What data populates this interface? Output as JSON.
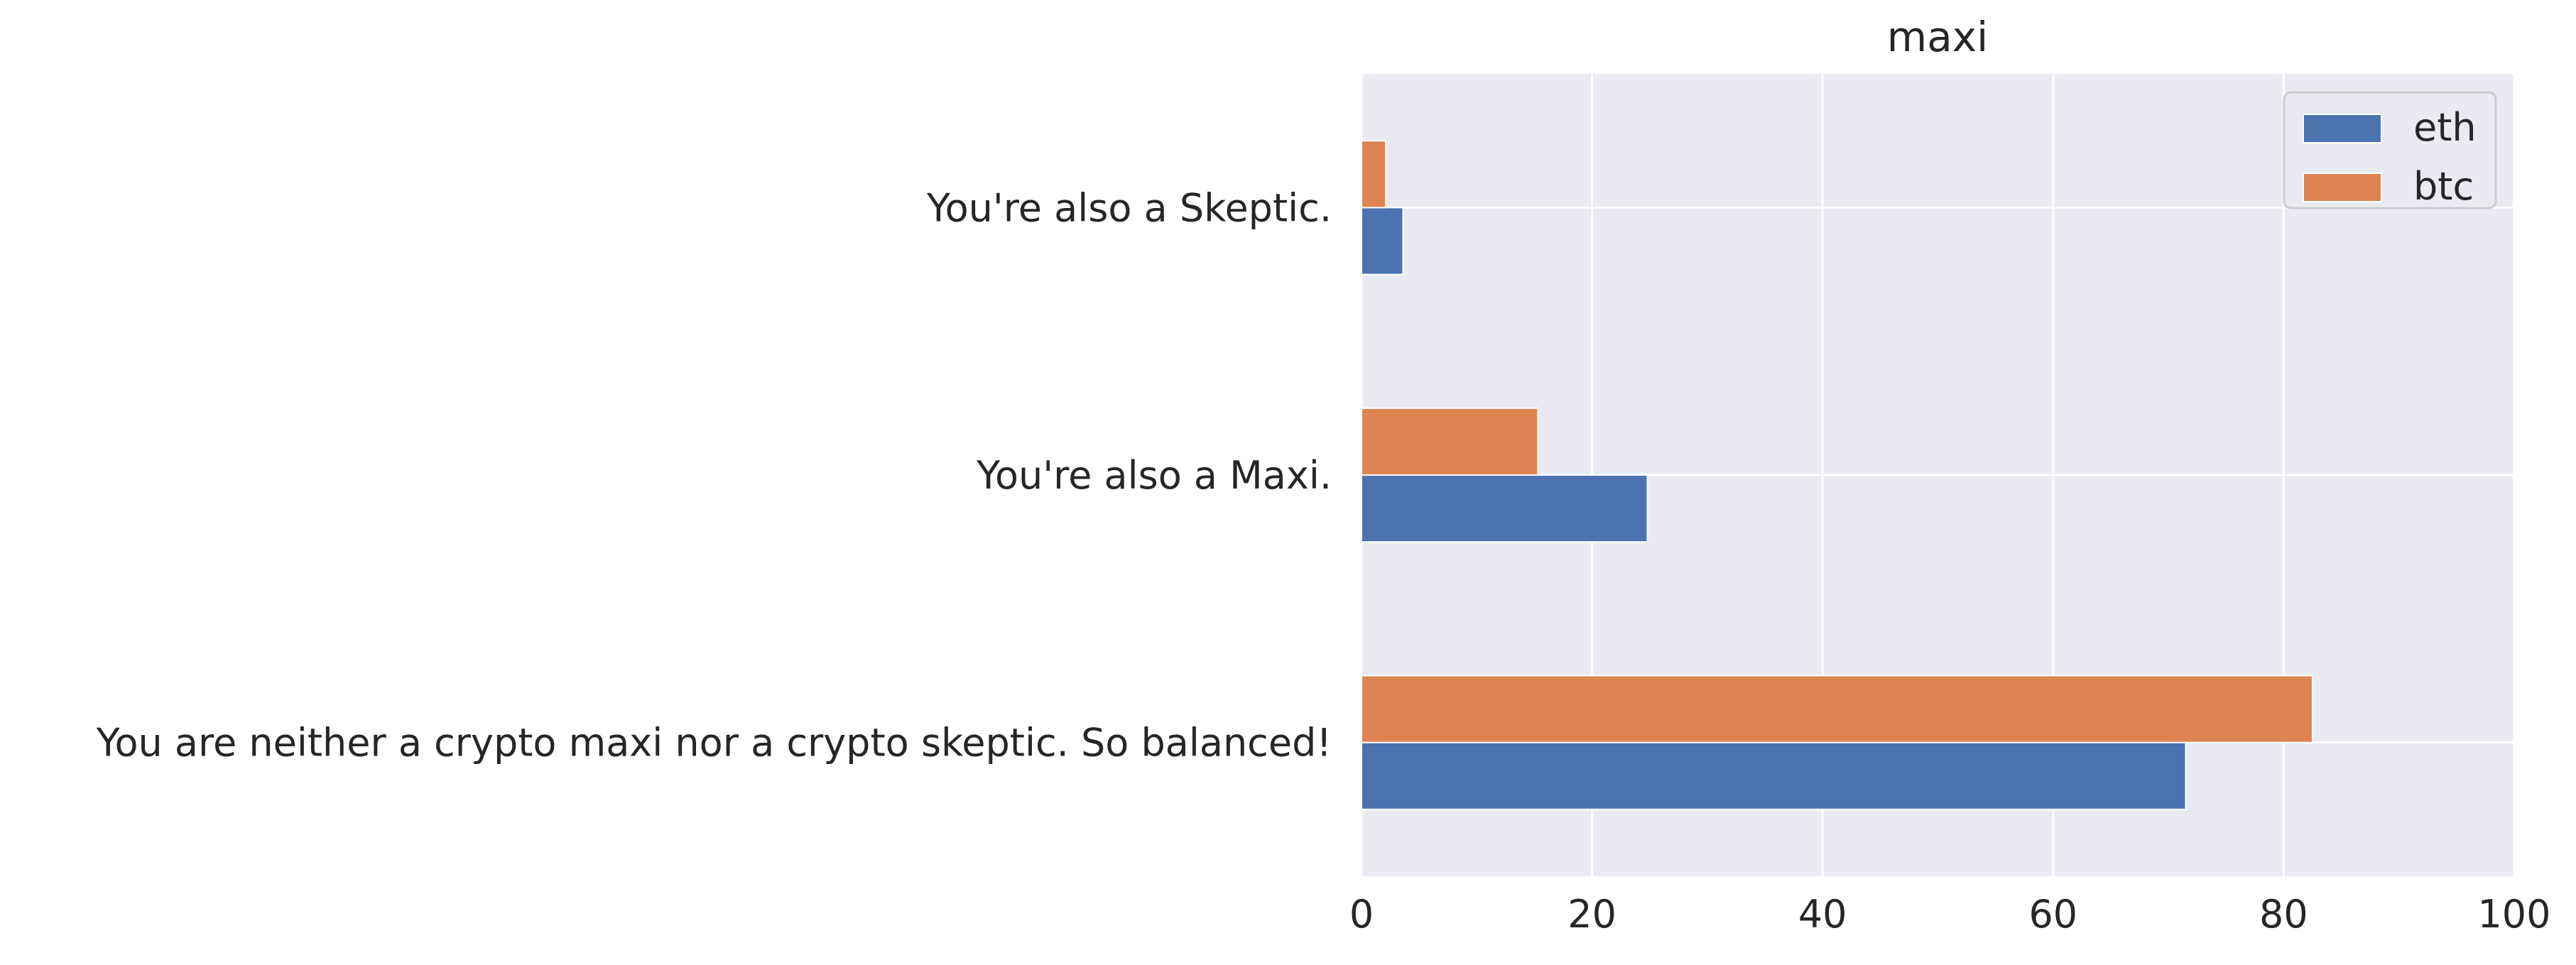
{
  "chart_data": {
    "type": "bar",
    "orientation": "horizontal",
    "title": "maxi",
    "xlabel": "",
    "ylabel": "",
    "categories": [
      "You are neither a crypto maxi nor a crypto skeptic. So balanced!",
      "You're also a Maxi.",
      "You're also a Skeptic."
    ],
    "series": [
      {
        "name": "eth",
        "values": [
          71.5,
          24.8,
          3.6
        ],
        "color": "#4c72b0"
      },
      {
        "name": "btc",
        "values": [
          82.5,
          15.3,
          2.1
        ],
        "color": "#dd8452"
      }
    ],
    "xlim": [
      0,
      100
    ],
    "x_ticks": [
      0,
      20,
      40,
      60,
      80,
      100
    ],
    "x_tick_labels": [
      "0",
      "20",
      "40",
      "60",
      "80",
      "100"
    ],
    "grid": true,
    "legend_position": "top-right",
    "colors": {
      "plot_background": "#eaeaf2",
      "grid": "#ffffff",
      "text": "#262626"
    }
  }
}
